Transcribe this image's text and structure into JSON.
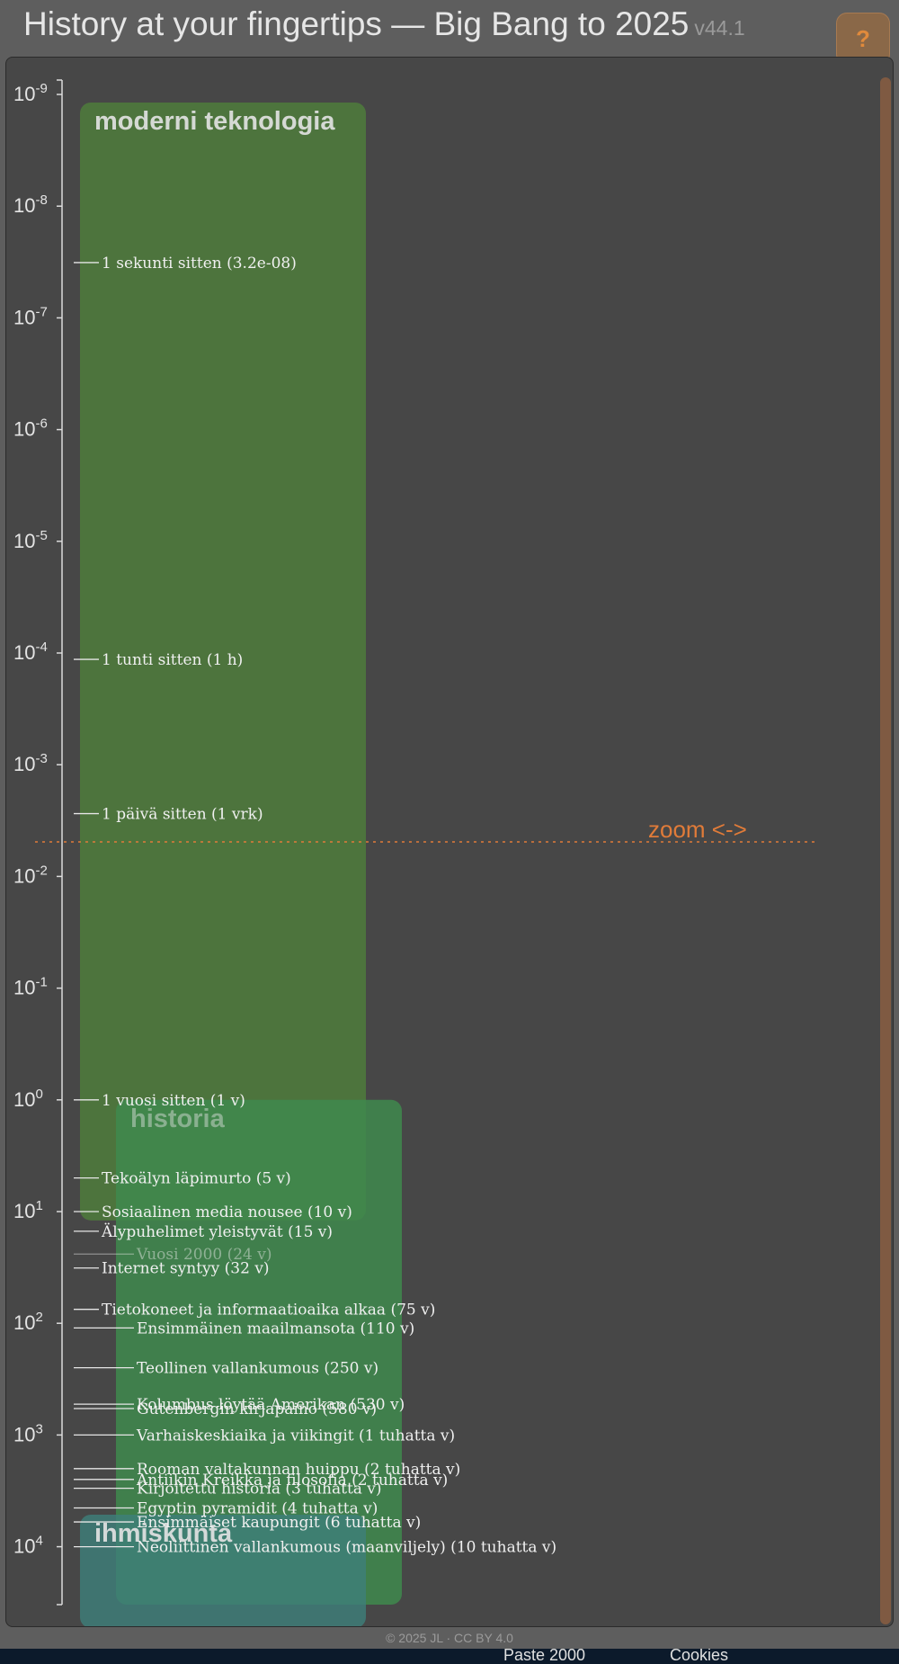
{
  "header": {
    "title": "History at your fingertips — Big Bang to 2025",
    "version": "v44.1",
    "help_label": "?"
  },
  "zoom_label": "zoom <->",
  "footer": "© 2025 JL · CC BY 4.0",
  "bottom_bar": {
    "items": [
      "Paste 2000",
      "Cookies"
    ]
  },
  "colors": {
    "background": "#5e5e5e",
    "panel": "#474747",
    "accent": "#e07b39",
    "band_moderni": "#4f7d3c",
    "band_historia": "#3f8a4e",
    "band_ihmiskunta": "#3d7f7a"
  },
  "chart_data": {
    "type": "timeline",
    "y_scale": "log",
    "ylabel": "",
    "y_ticks": [
      "-9",
      "-8",
      "-7",
      "-6",
      "-5",
      "-4",
      "-3",
      "-2",
      "-1",
      "0",
      "1",
      "2",
      "3",
      "4"
    ],
    "bands": [
      {
        "name": "moderni teknologia",
        "from": 1e-09,
        "to": 12,
        "color": "#4f7d3c"
      },
      {
        "name": "historia",
        "from": 1,
        "to": 10000,
        "color": "#3f8a4e"
      },
      {
        "name": "ihmiskunta",
        "from": 6000,
        "to": 10000,
        "color": "#3d7f7a"
      }
    ],
    "events": [
      {
        "label": "1 sekunti sitten (3.2e-08)",
        "years": 3.2e-08,
        "column": 0
      },
      {
        "label": "1 tunti sitten (1 h)",
        "years": 0.000114,
        "column": 0
      },
      {
        "label": "1 päivä sitten (1 vrk)",
        "years": 0.00274,
        "column": 0
      },
      {
        "label": "1 vuosi sitten (1 v)",
        "years": 1,
        "column": 0
      },
      {
        "label": "Tekoälyn läpimurto (5 v)",
        "years": 5,
        "column": 0
      },
      {
        "label": "Sosiaalinen media nousee (10 v)",
        "years": 10,
        "column": 0
      },
      {
        "label": "Älypuhelimet yleistyvät (15 v)",
        "years": 15,
        "column": 0
      },
      {
        "label": "Vuosi 2000 (24 v)",
        "years": 24,
        "column": 1
      },
      {
        "label": "Internet syntyy (32 v)",
        "years": 32,
        "column": 0
      },
      {
        "label": "Tietokoneet ja informaatioaika alkaa (75 v)",
        "years": 75,
        "column": 0
      },
      {
        "label": "Ensimmäinen maailmansota (110 v)",
        "years": 110,
        "column": 1
      },
      {
        "label": "Teollinen vallankumous (250 v)",
        "years": 250,
        "column": 1
      },
      {
        "label": "Kolumbus löytää Amerikan (530 v)",
        "years": 530,
        "column": 1
      },
      {
        "label": "Gutenbergin kirjapaino (580 v)",
        "years": 580,
        "column": 1
      },
      {
        "label": "Varhaiskeskiaika ja viikingit (1 tuhatta v)",
        "years": 1000,
        "column": 1
      },
      {
        "label": "Rooman valtakunnan huippu (2 tuhatta v)",
        "years": 2000,
        "column": 1
      },
      {
        "label": "Antiikin Kreikka ja filosofia (2 tuhatta v)",
        "years": 2500,
        "column": 1
      },
      {
        "label": "Kirjoitettu historia (3 tuhatta v)",
        "years": 3000,
        "column": 1
      },
      {
        "label": "Egyptin pyramidit (4 tuhatta v)",
        "years": 4500,
        "column": 1
      },
      {
        "label": "Ensimmäiset kaupungit (6 tuhatta v)",
        "years": 6000,
        "column": 1
      },
      {
        "label": "Neoliittinen vallankumous (maanviljely) (10 tuhatta v)",
        "years": 10000,
        "column": 1
      }
    ]
  }
}
